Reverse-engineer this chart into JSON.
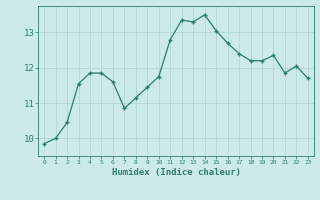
{
  "x": [
    0,
    1,
    2,
    3,
    4,
    5,
    6,
    7,
    8,
    9,
    10,
    11,
    12,
    13,
    14,
    15,
    16,
    17,
    18,
    19,
    20,
    21,
    22,
    23
  ],
  "y": [
    9.85,
    10.0,
    10.45,
    11.55,
    11.85,
    11.85,
    11.6,
    10.85,
    11.15,
    11.45,
    11.75,
    12.8,
    13.35,
    13.3,
    13.5,
    13.05,
    12.7,
    12.4,
    12.2,
    12.2,
    12.35,
    11.85,
    12.05,
    11.7
  ],
  "xlabel": "Humidex (Indice chaleur)",
  "xlim": [
    -0.5,
    23.5
  ],
  "ylim": [
    9.5,
    13.75
  ],
  "yticks": [
    10,
    11,
    12,
    13
  ],
  "xticks": [
    0,
    1,
    2,
    3,
    4,
    5,
    6,
    7,
    8,
    9,
    10,
    11,
    12,
    13,
    14,
    15,
    16,
    17,
    18,
    19,
    20,
    21,
    22,
    23
  ],
  "line_color": "#2d7d6d",
  "marker_color": "#2d7d6d",
  "bg_color": "#cceae7",
  "grid_color": "#aad4d0",
  "xlabel_color": "#2d7d6d",
  "tick_color": "#2d7d6d",
  "axes_color": "#2d7d6d"
}
